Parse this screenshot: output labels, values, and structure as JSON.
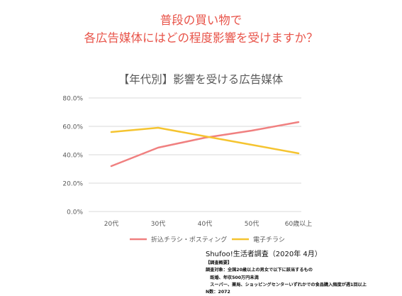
{
  "heading": {
    "line1": "普段の買い物で",
    "line2": "各広告媒体にはどの程度影響を受けますか？"
  },
  "chart_data": {
    "type": "line",
    "title": "【年代別】影響を受ける広告媒体",
    "categories": [
      "20代",
      "30代",
      "40代",
      "50代",
      "60歳以上"
    ],
    "yticks": [
      "0.0%",
      "20.0%",
      "40.0%",
      "60.0%",
      "80.0%"
    ],
    "ylim": [
      0,
      80
    ],
    "unit": "%",
    "grid": true,
    "legend_position": "bottom",
    "xlabel": "",
    "ylabel": "",
    "series": [
      {
        "name": "折込チラシ・ポスティング",
        "color": "#f08080",
        "values": [
          32,
          45,
          52,
          57,
          63
        ]
      },
      {
        "name": "電子チラシ",
        "color": "#f5c430",
        "values": [
          56,
          59,
          53,
          47,
          41
        ]
      }
    ]
  },
  "source": {
    "title": "Shufoo!生活者調査（2020年 4月）",
    "lines": [
      "【調査概要】",
      "調査対象：全国20歳以上の男女で以下に該当するもの",
      "　既婚、年収500万円未満",
      "　スーパー、薬局、ショッピングセンターいずれかでの食品購入頻度が週1回以上",
      "N数：2072"
    ]
  }
}
